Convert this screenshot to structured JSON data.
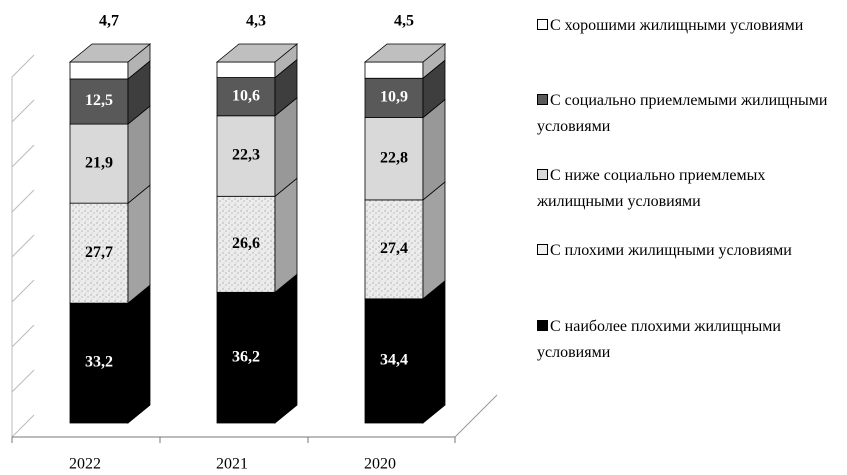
{
  "chart_data": {
    "type": "stacked-bar-3d",
    "categories": [
      "2022",
      "2021",
      "2020"
    ],
    "series": [
      {
        "name": "С наиболее плохими жилищными условиями",
        "color": "#000000",
        "values": [
          33.2,
          36.2,
          34.4
        ],
        "value_labels": [
          "33,2",
          "36,2",
          "34,4"
        ]
      },
      {
        "name": "С плохими жилищными условиями",
        "color": "#e8e8e8",
        "pattern": "speckled",
        "values": [
          27.7,
          26.6,
          27.4
        ],
        "value_labels": [
          "27,7",
          "26,6",
          "27,4"
        ]
      },
      {
        "name": "С ниже социально приемлемых жилищными условиями",
        "color": "#d9d9d9",
        "values": [
          21.9,
          22.3,
          22.8
        ],
        "value_labels": [
          "21,9",
          "22,3",
          "22,8"
        ]
      },
      {
        "name": "С социально приемлемыми жилищными условиями",
        "color": "#595959",
        "values": [
          12.5,
          10.6,
          10.9
        ],
        "value_labels": [
          "12,5",
          "10,6",
          "10,9"
        ]
      },
      {
        "name": "С хорошими жилищными условиями",
        "color": "#ffffff",
        "values": [
          4.7,
          4.3,
          4.5
        ],
        "value_labels": [
          "4,7",
          "4,3",
          "4,5"
        ]
      }
    ],
    "ylim": [
      0,
      100
    ],
    "legend": "right"
  }
}
